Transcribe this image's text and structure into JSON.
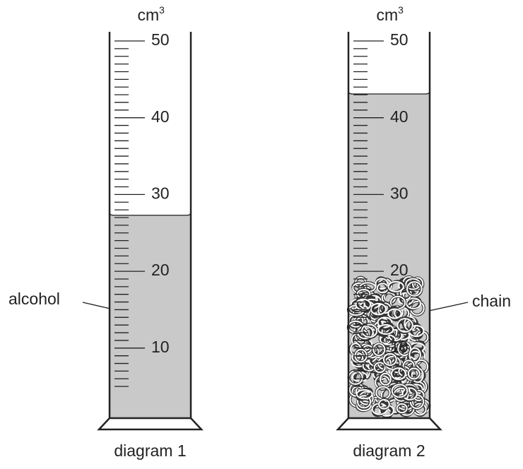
{
  "diagrams": [
    {
      "caption": "diagram 1",
      "unit": "cm",
      "unit_power": "3",
      "scale_labels": [
        10,
        20,
        30,
        40,
        50
      ],
      "tick_range": [
        5,
        50
      ],
      "liquid_level": 27.3,
      "label": "alcohol"
    },
    {
      "caption": "diagram 2",
      "unit": "cm",
      "unit_power": "3",
      "scale_labels": [
        10,
        20,
        30,
        40,
        50
      ],
      "tick_range": [
        5,
        50
      ],
      "liquid_level": 43.1,
      "chain_top": 19.5,
      "label": "chain"
    }
  ]
}
